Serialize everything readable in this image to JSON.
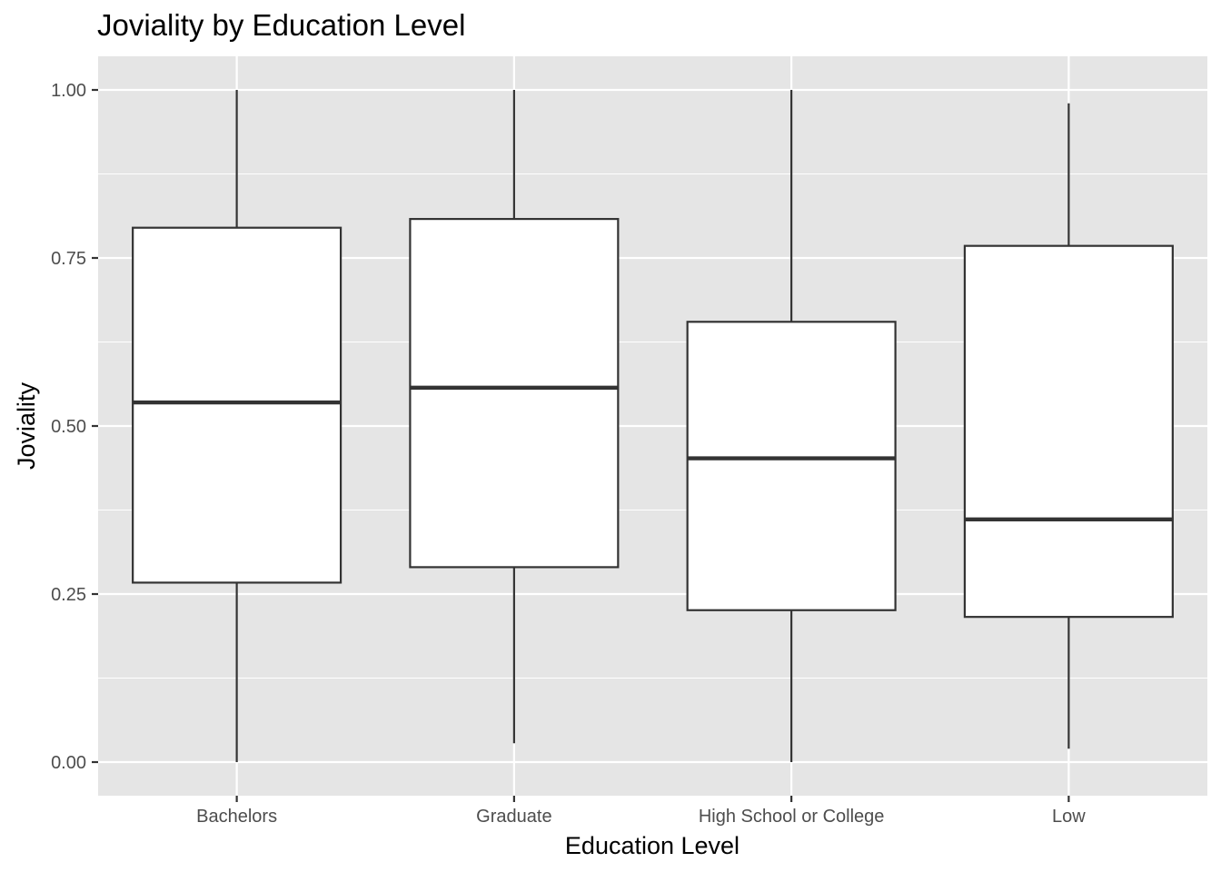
{
  "chart_data": {
    "type": "boxplot",
    "title": "Joviality by Education Level",
    "xlabel": "Education Level",
    "ylabel": "Joviality",
    "categories": [
      "Bachelors",
      "Graduate",
      "High School or College",
      "Low"
    ],
    "series": [
      {
        "category": "Bachelors",
        "min": 0.0,
        "q1": 0.267,
        "median": 0.535,
        "q3": 0.795,
        "max": 1.0
      },
      {
        "category": "Graduate",
        "min": 0.028,
        "q1": 0.29,
        "median": 0.557,
        "q3": 0.808,
        "max": 1.0
      },
      {
        "category": "High School or College",
        "min": 0.0,
        "q1": 0.226,
        "median": 0.452,
        "q3": 0.655,
        "max": 1.0
      },
      {
        "category": "Low",
        "min": 0.02,
        "q1": 0.216,
        "median": 0.361,
        "q3": 0.768,
        "max": 0.98
      }
    ],
    "yticks": [
      0.0,
      0.25,
      0.5,
      0.75,
      1.0
    ],
    "ytick_labels": [
      "0.00",
      "0.25",
      "0.50",
      "0.75",
      "1.00"
    ],
    "ylim": [
      -0.05,
      1.05
    ],
    "grid": true,
    "colors": {
      "panel": "#e5e5e5",
      "grid": "#ffffff",
      "box_fill": "#ffffff",
      "box_stroke": "#333333"
    }
  }
}
